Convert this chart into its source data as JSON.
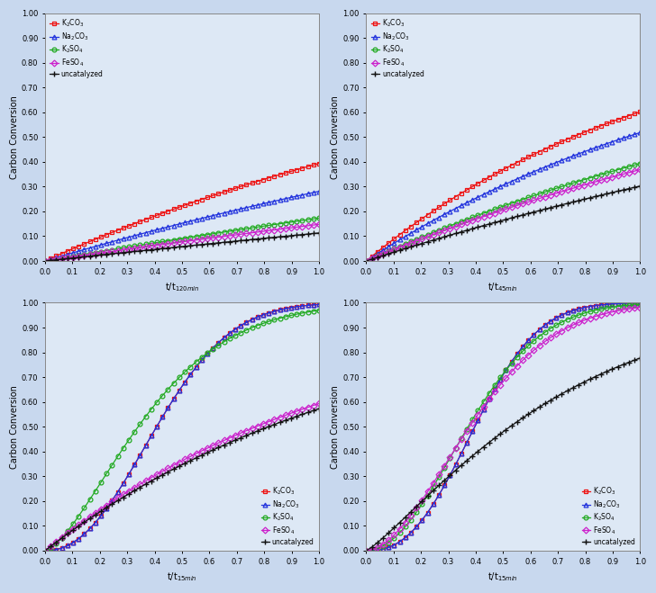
{
  "subplots": [
    {
      "xlabel": "t/t$_{120 min}$",
      "legend_loc": "upper left",
      "curves": {
        "K2CO3": {
          "k": 0.5,
          "n": 1.0,
          "color": "#ee1111",
          "marker": "s"
        },
        "Na2CO3": {
          "k": 0.33,
          "n": 1.0,
          "color": "#2233dd",
          "marker": "^"
        },
        "K2SO4": {
          "k": 0.19,
          "n": 1.0,
          "color": "#22aa22",
          "marker": "o"
        },
        "FeSO4": {
          "k": 0.16,
          "n": 1.0,
          "color": "#cc22cc",
          "marker": "D"
        },
        "uncatalyzed": {
          "k": 0.12,
          "n": 1.0,
          "color": "#111111",
          "marker": "+"
        }
      }
    },
    {
      "xlabel": "t/t$_{45 min}$",
      "legend_loc": "upper left",
      "curves": {
        "K2CO3": {
          "k": 0.92,
          "n": 1.0,
          "color": "#ee1111",
          "marker": "s"
        },
        "Na2CO3": {
          "k": 0.73,
          "n": 1.0,
          "color": "#2233dd",
          "marker": "^"
        },
        "K2SO4": {
          "k": 0.5,
          "n": 1.0,
          "color": "#22aa22",
          "marker": "o"
        },
        "FeSO4": {
          "k": 0.46,
          "n": 1.0,
          "color": "#cc22cc",
          "marker": "D"
        },
        "uncatalyzed": {
          "k": 0.36,
          "n": 1.0,
          "color": "#111111",
          "marker": "+"
        }
      }
    },
    {
      "xlabel": "t/t$_{15 min}$",
      "legend_loc": "lower right",
      "curves": {
        "K2CO3": {
          "k": 5.0,
          "n": 2.2,
          "color": "#ee1111",
          "marker": "s"
        },
        "Na2CO3": {
          "k": 5.0,
          "n": 2.2,
          "color": "#2233dd",
          "marker": "^"
        },
        "K2SO4": {
          "k": 3.5,
          "n": 1.5,
          "color": "#22aa22",
          "marker": "o"
        },
        "FeSO4": {
          "k": 0.9,
          "n": 1.0,
          "color": "#cc22cc",
          "marker": "D"
        },
        "uncatalyzed": {
          "k": 0.85,
          "n": 1.0,
          "color": "#111111",
          "marker": "+"
        }
      }
    },
    {
      "xlabel": "t/t$_{15 min}$",
      "legend_loc": "lower right",
      "curves": {
        "K2CO3": {
          "k": 7.0,
          "n": 2.5,
          "color": "#ee1111",
          "marker": "s"
        },
        "Na2CO3": {
          "k": 7.0,
          "n": 2.5,
          "color": "#2233dd",
          "marker": "^"
        },
        "K2SO4": {
          "k": 5.0,
          "n": 2.0,
          "color": "#22aa22",
          "marker": "o"
        },
        "FeSO4": {
          "k": 4.0,
          "n": 1.8,
          "color": "#cc22cc",
          "marker": "D"
        },
        "uncatalyzed": {
          "k": 1.5,
          "n": 1.2,
          "color": "#111111",
          "marker": "+"
        }
      }
    }
  ],
  "legend_labels": {
    "K2CO3": "K$_2$CO$_3$",
    "Na2CO3": "Na$_2$CO$_3$",
    "K2SO4": "K$_2$SO$_4$",
    "FeSO4": "FeSO$_4$",
    "uncatalyzed": "uncatalyzed"
  },
  "ylabel": "Carbon Conversion",
  "ylim": [
    0.0,
    1.0
  ],
  "xlim": [
    0.0,
    1.0
  ],
  "xticks": [
    0.0,
    0.1,
    0.2,
    0.3,
    0.4,
    0.5,
    0.6,
    0.7,
    0.8,
    0.9,
    1.0
  ],
  "yticks": [
    0.0,
    0.1,
    0.2,
    0.3,
    0.4,
    0.5,
    0.6,
    0.7,
    0.8,
    0.9,
    1.0
  ],
  "n_points": 50,
  "bg_color": "#dde8f5",
  "fig_bg": "#ffffff",
  "outer_bg": "#c8d8ee"
}
